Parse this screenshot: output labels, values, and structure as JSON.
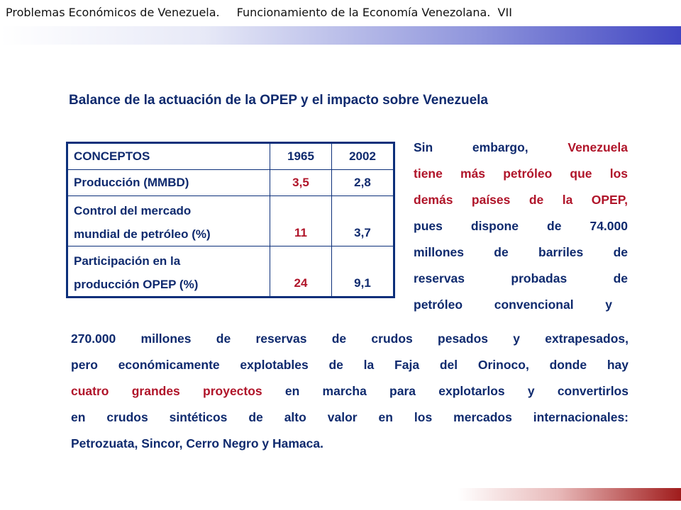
{
  "header": {
    "part1": "Problemas Económicos de Venezuela.",
    "part2": "Funcionamiento de la Economía Venezolana.",
    "part3": "VII"
  },
  "slide_title": "Balance de la actuación de la OPEP y el impacto sobre Venezuela",
  "table": {
    "headers": [
      "CONCEPTOS",
      "1965",
      "2002"
    ],
    "rows": [
      {
        "concept_line1": "Producción (MMBD)",
        "concept_line2": "",
        "v1965": "3,5",
        "v2002": "2,8"
      },
      {
        "concept_line1": "Control del mercado",
        "concept_line2": "mundial de petróleo (%)",
        "v1965": "11",
        "v2002": "3,7"
      },
      {
        "concept_line1": "Participación en la",
        "concept_line2": "producción OPEP (%)",
        "v1965": "24",
        "v2002": "9,1"
      }
    ]
  },
  "right_paragraph": {
    "l1_a": "Sin embargo,",
    "l1_b": "Venezuela",
    "l2": "tiene más petróleo que los",
    "l3": "demás países de la OPEP,",
    "l4": "pues dispone de 74.000",
    "l5": "millones de barriles de",
    "l6": "reservas probadas de",
    "l7": "petróleo convencional y"
  },
  "bottom_paragraph": {
    "l1": "270.000 millones de reservas de crudos pesados y extrapesados,",
    "l2": "pero económicamente explotables de la Faja del Orinoco, donde hay",
    "l3_red": "cuatro grandes proyectos",
    "l3_rest": "en marcha para explotarlos y convertirlos",
    "l4": "en crudos sintéticos de alto valor en los mercados internacionales:",
    "l5": "Petrozuata, Sincor, Cerro Negro y Hamaca."
  },
  "colors": {
    "text_blue": "#0f2a6e",
    "accent_red": "#b0152a",
    "band_blue": "#4146c2",
    "band_red": "#a01c1c"
  }
}
